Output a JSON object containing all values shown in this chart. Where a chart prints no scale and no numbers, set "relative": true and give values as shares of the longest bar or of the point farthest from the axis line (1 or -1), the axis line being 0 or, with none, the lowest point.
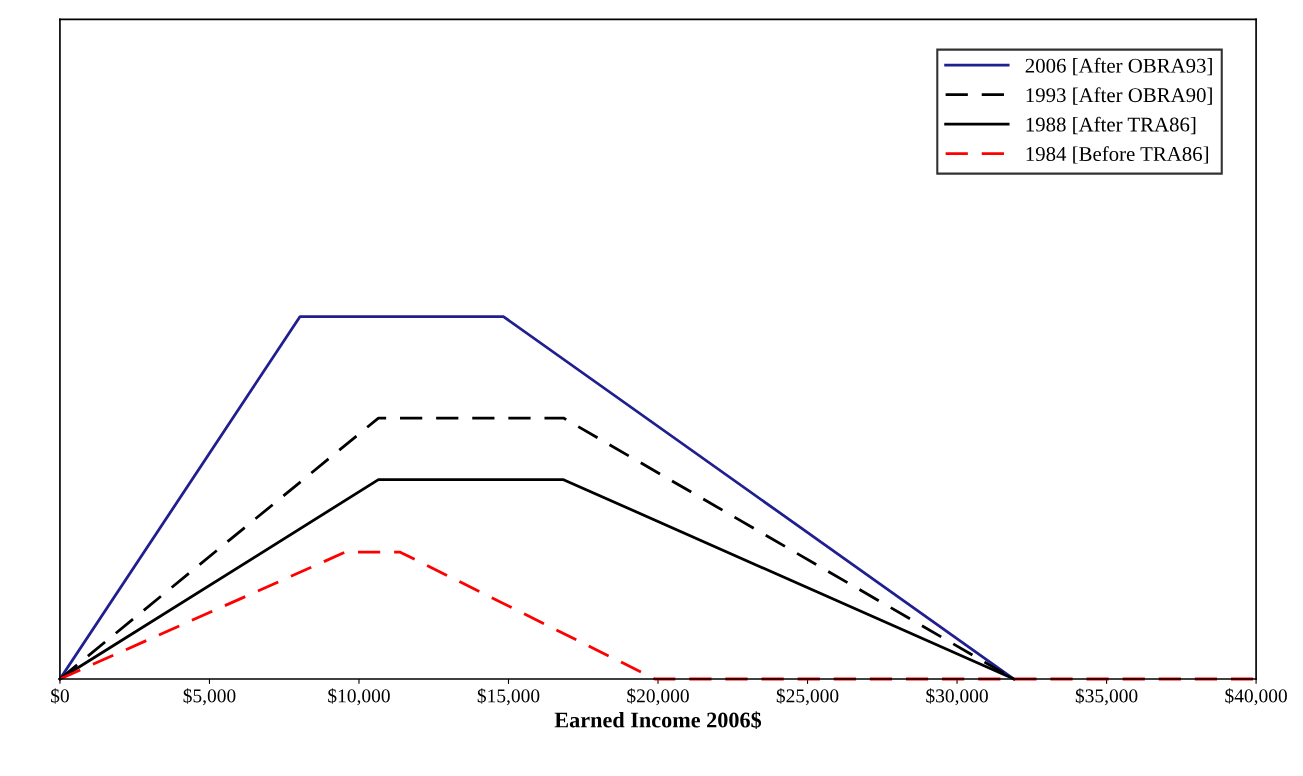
{
  "chart_data": {
    "type": "line",
    "relative": true,
    "xlabel": "Earned Income 2006$",
    "xlim": [
      0,
      40000
    ],
    "xticks": [
      {
        "value": 0,
        "label": "$0"
      },
      {
        "value": 5000,
        "label": "$5,000"
      },
      {
        "value": 10000,
        "label": "$10,000"
      },
      {
        "value": 15000,
        "label": "$15,000"
      },
      {
        "value": 20000,
        "label": "$20,000"
      },
      {
        "value": 25000,
        "label": "$25,000"
      },
      {
        "value": 30000,
        "label": "$30,000"
      },
      {
        "value": 35000,
        "label": "$35,000"
      },
      {
        "value": 40000,
        "label": "$40,000"
      }
    ],
    "tick_labels": "x",
    "grid": false,
    "legend": "top right",
    "marker": "none",
    "series": [
      {
        "name": "2006 [After OBRA93]",
        "color": "#1f1f8f",
        "line_style": "solid",
        "x": [
          0,
          8030,
          14830,
          31900
        ],
        "values": [
          0,
          1,
          1,
          0
        ]
      },
      {
        "name": "1993 [After OBRA90]",
        "color": "#000000",
        "line_style": "dashed",
        "x": [
          0,
          10650,
          16840,
          31900
        ],
        "values": [
          0,
          0.72,
          0.72,
          0
        ]
      },
      {
        "name": "1988 [After TRA86]",
        "color": "#000000",
        "line_style": "solid",
        "x": [
          0,
          10650,
          16840,
          31900
        ],
        "values": [
          0,
          0.55,
          0.55,
          0
        ]
      },
      {
        "name": "1984 [Before TRA86]",
        "color": "#ff0000",
        "line_style": "dashed",
        "x": [
          0,
          9540,
          11380,
          19900,
          40000
        ],
        "values": [
          0,
          0.35,
          0.35,
          0,
          0
        ]
      }
    ]
  }
}
